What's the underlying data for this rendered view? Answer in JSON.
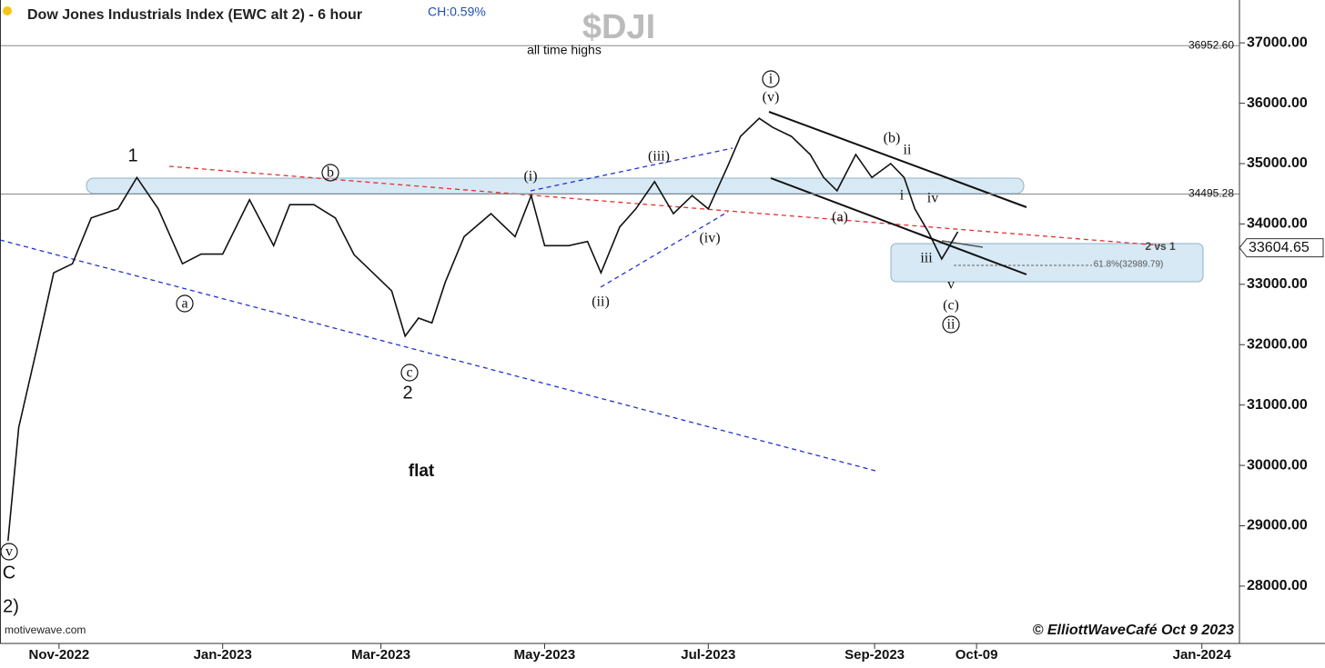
{
  "chart_data": {
    "type": "line",
    "title": "Dow Jones Industrials Index (EWC alt 2) - 6 hour",
    "change": "CH:0.59%",
    "symbol": "$DJI",
    "source": "motivewave.com",
    "credit": "© ElliottWaveCafé Oct 9 2023",
    "color": "#111111",
    "x": [
      "2022-10-13",
      "2022-10-17",
      "2022-10-24",
      "2022-10-30",
      "2022-11-06",
      "2022-11-13",
      "2022-11-23",
      "2022-11-30",
      "2022-12-08",
      "2022-12-17",
      "2022-12-24",
      "2023-01-01",
      "2023-01-11",
      "2023-01-20",
      "2023-01-26",
      "2023-02-04",
      "2023-02-12",
      "2023-02-19",
      "2023-02-26",
      "2023-03-05",
      "2023-03-10",
      "2023-03-15",
      "2023-03-20",
      "2023-03-25",
      "2023-04-01",
      "2023-04-11",
      "2023-04-20",
      "2023-04-26",
      "2023-05-01",
      "2023-05-10",
      "2023-05-17",
      "2023-05-22",
      "2023-05-29",
      "2023-06-04",
      "2023-06-11",
      "2023-06-18",
      "2023-06-25",
      "2023-07-01",
      "2023-07-08",
      "2023-07-13",
      "2023-07-20",
      "2023-07-25",
      "2023-08-01",
      "2023-08-08",
      "2023-08-13",
      "2023-08-18",
      "2023-08-25",
      "2023-08-31",
      "2023-09-07",
      "2023-09-12",
      "2023-09-16",
      "2023-09-21",
      "2023-09-26",
      "2023-09-29",
      "2023-10-02"
    ],
    "values": [
      28750,
      30630,
      31990,
      33190,
      33340,
      34100,
      34250,
      34770,
      34250,
      33340,
      33500,
      33500,
      34400,
      33640,
      34320,
      34320,
      34100,
      33490,
      33190,
      32890,
      32140,
      32440,
      32360,
      33040,
      33790,
      34170,
      33790,
      34470,
      33640,
      33640,
      33710,
      33190,
      33950,
      34250,
      34700,
      34170,
      34470,
      34250,
      34930,
      35450,
      35750,
      35600,
      35450,
      35150,
      34770,
      34550,
      35150,
      34770,
      35000,
      34770,
      34250,
      33870,
      33420,
      33640,
      33870
    ],
    "last_price": 33604.65,
    "levels": [
      {
        "value": 36952.6,
        "label": "36952.60"
      },
      34495.28
    ],
    "xlim": [
      "2022-10-10",
      "2024-01-15"
    ],
    "xticks": [
      {
        "value": "2022-11-01",
        "label": "Nov-2022"
      },
      {
        "value": "2023-01-01",
        "label": "Jan-2023"
      },
      {
        "value": "2023-03-01",
        "label": "Mar-2023"
      },
      {
        "value": "2023-05-01",
        "label": "May-2023"
      },
      {
        "value": "2023-07-01",
        "label": "Jul-2023"
      },
      {
        "value": "2023-09-01",
        "label": "Sep-2023"
      },
      {
        "value": "2023-10-09",
        "label": "Oct-09"
      },
      {
        "value": "2024-01-01",
        "label": "Jan-2024"
      }
    ],
    "ylim": [
      27050,
      37710
    ],
    "yticks": [
      {
        "value": 28000,
        "label": "28000.00"
      },
      {
        "value": 29000,
        "label": "29000.00"
      },
      {
        "value": 30000,
        "label": "30000.00"
      },
      {
        "value": 31000,
        "label": "31000.00"
      },
      {
        "value": 32000,
        "label": "32000.00"
      },
      {
        "value": 33000,
        "label": "33000.00"
      },
      {
        "value": 34000,
        "label": "34000.00"
      },
      {
        "value": 35000,
        "label": "35000.00"
      },
      {
        "value": 36000,
        "label": "36000.00"
      },
      {
        "value": 37000,
        "label": "37000.00"
      }
    ],
    "annotations": [
      "1",
      "a",
      "b",
      "c",
      "2",
      "(i)",
      "(ii)",
      "(iii)",
      "(iv)",
      "i",
      "(v)",
      "(a)",
      "(b)",
      "ii",
      "i",
      "iv",
      "iii",
      "v",
      "(c)",
      "ii",
      "v",
      "C",
      "2)",
      "flat",
      "all time highs",
      "2 vs 1",
      "61.8%(32989.79)"
    ]
  }
}
